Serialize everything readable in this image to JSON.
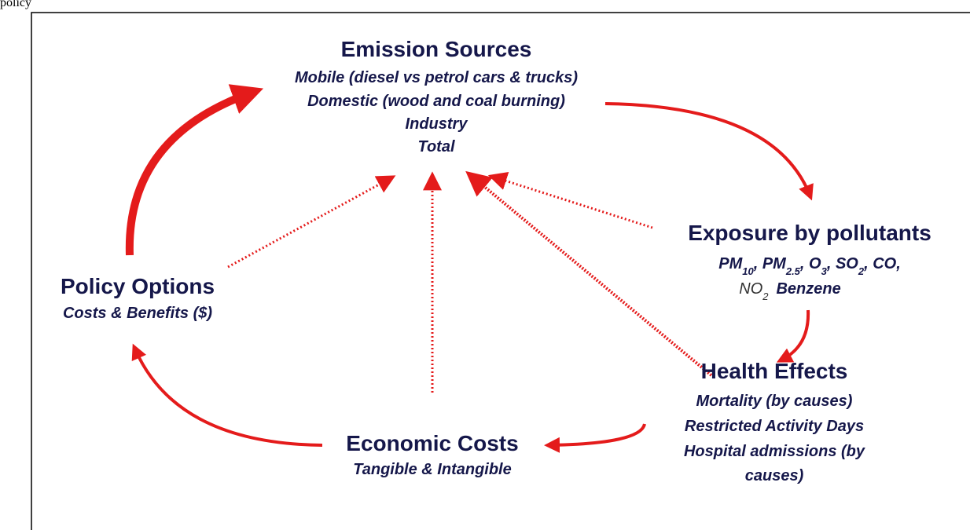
{
  "header": {
    "text": "policy"
  },
  "nodes": [
    {
      "title": "Emission Sources",
      "lines": [
        "Mobile (diesel vs petrol cars & trucks)",
        "Domestic (wood and coal burning)",
        "Industry",
        "Total"
      ]
    },
    {
      "title": "Exposure by pollutants",
      "pollutants_line1": [
        "PM",
        "10",
        ", PM",
        "2.5",
        ", O",
        "3",
        ", SO",
        "2",
        ", CO,"
      ],
      "pollutants_line2": [
        "NO",
        "2",
        "Benzene"
      ]
    },
    {
      "title": "Health Effects",
      "lines": [
        "Mortality (by causes)",
        "Restricted Activity Days",
        "Hospital admissions (by",
        "causes)"
      ]
    },
    {
      "title": "Economic Costs",
      "lines": [
        "Tangible & Intangible"
      ]
    },
    {
      "title": "Policy Options",
      "lines": [
        "Costs & Benefits ($)"
      ]
    }
  ]
}
